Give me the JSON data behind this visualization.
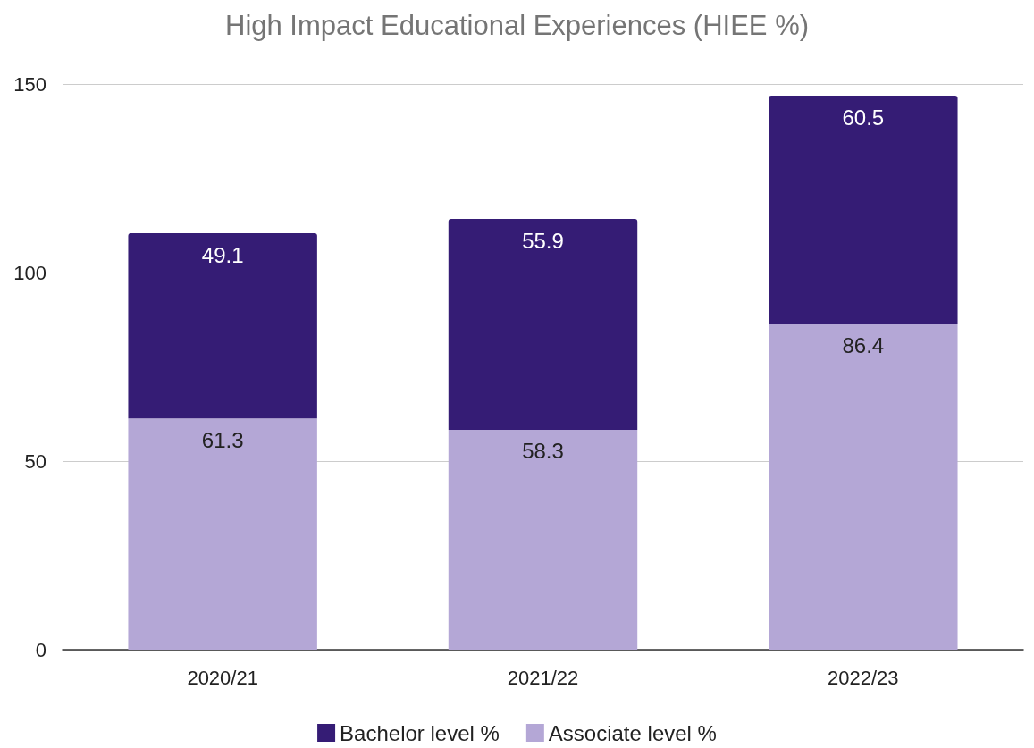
{
  "chart_data": {
    "type": "bar",
    "title": "High Impact Educational Experiences (HIEE %)",
    "categories": [
      "2020/21",
      "2021/22",
      "2022/23"
    ],
    "series": [
      {
        "name": "Associate level %",
        "color": "#b4a7d6",
        "values": [
          61.3,
          58.3,
          86.4
        ]
      },
      {
        "name": "Bachelor level %",
        "color": "#351c75",
        "values": [
          49.1,
          55.9,
          60.5
        ]
      }
    ],
    "stacked": true,
    "ylim": [
      0,
      150
    ],
    "yticks": [
      0,
      50,
      100,
      150
    ],
    "grid": "y",
    "data_labels": true,
    "legend": "bottom"
  }
}
